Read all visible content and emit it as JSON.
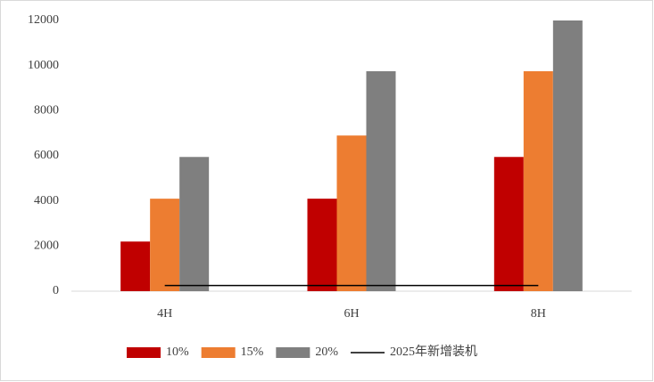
{
  "chart_data": {
    "type": "bar",
    "categories": [
      "4H",
      "6H",
      "8H"
    ],
    "series": [
      {
        "name": "10%",
        "color": "#c00000",
        "values": [
          2200,
          4100,
          5950
        ]
      },
      {
        "name": "15%",
        "color": "#ed7d31",
        "values": [
          4100,
          6900,
          9750
        ]
      },
      {
        "name": "20%",
        "color": "#7f7f7f",
        "values": [
          5950,
          9750,
          12000
        ]
      },
      {
        "name": "2025年新增装机",
        "color": "#000000",
        "type": "line",
        "values": [
          250,
          250,
          250
        ]
      }
    ],
    "ylim": [
      0,
      12000
    ],
    "yticks": [
      0,
      2000,
      4000,
      6000,
      8000,
      10000,
      12000
    ],
    "grid": false,
    "legend": "bottom"
  }
}
